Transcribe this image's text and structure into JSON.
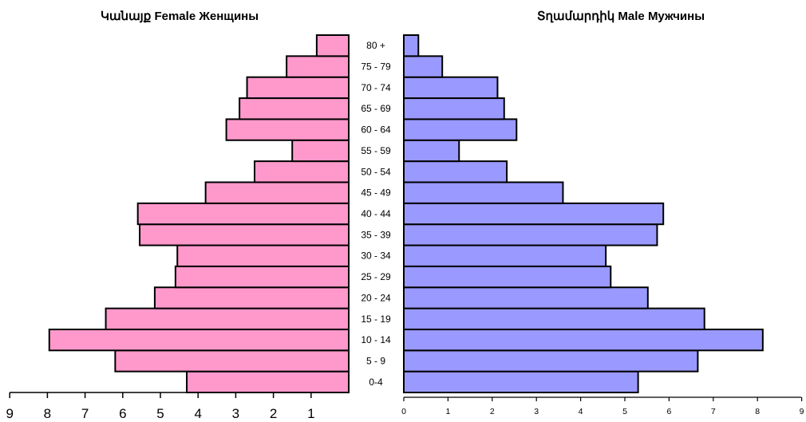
{
  "chart_data": {
    "type": "bar",
    "orientation": "horizontal",
    "categories": [
      "0-4",
      "5 - 9",
      "10 - 14",
      "15 - 19",
      "20 - 24",
      "25 - 29",
      "30 - 34",
      "35 - 39",
      "40 - 44",
      "45 - 49",
      "50 - 54",
      "55 - 59",
      "60 - 64",
      "65 - 69",
      "70 - 74",
      "75 - 79",
      "80 +"
    ],
    "panels": [
      {
        "id": "female",
        "title": "Կանայք Female  Женщины",
        "direction": "left",
        "color": "#ff99cc",
        "xlim": [
          0,
          9
        ],
        "ticks": [
          9,
          8,
          7,
          6,
          5,
          4,
          3,
          2,
          1
        ],
        "values": [
          4.3,
          6.2,
          7.95,
          6.45,
          5.15,
          4.6,
          4.55,
          5.55,
          5.6,
          3.8,
          2.5,
          1.5,
          3.25,
          2.9,
          2.7,
          1.65,
          0.85
        ]
      },
      {
        "id": "male",
        "title": "Տղամարդիկ Male  Мужчины",
        "direction": "right",
        "color": "#9999ff",
        "xlim": [
          0,
          9
        ],
        "ticks": [
          0,
          1,
          2,
          3,
          4,
          5,
          6,
          7,
          8,
          9
        ],
        "values": [
          5.3,
          6.65,
          8.12,
          6.8,
          5.52,
          4.68,
          4.57,
          5.73,
          5.87,
          3.6,
          2.33,
          1.25,
          2.55,
          2.27,
          2.12,
          0.87,
          0.33
        ]
      }
    ]
  }
}
